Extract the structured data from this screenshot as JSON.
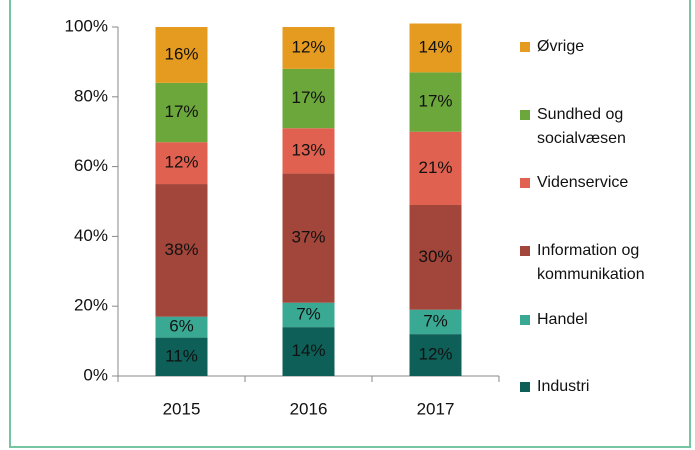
{
  "chart_data": {
    "type": "stacked_bar",
    "categories": [
      "2015",
      "2016",
      "2017"
    ],
    "series": [
      {
        "name": "Industri",
        "color": "#0d5f58",
        "values": [
          11,
          14,
          12
        ],
        "value_labels": [
          "11%",
          "14%",
          "12%"
        ]
      },
      {
        "name": "Handel",
        "color": "#3aa994",
        "values": [
          6,
          7,
          7
        ],
        "value_labels": [
          "6%",
          "7%",
          "7%"
        ]
      },
      {
        "name": "Information og kommunikation",
        "color": "#a2453a",
        "values": [
          38,
          37,
          30
        ],
        "value_labels": [
          "38%",
          "37%",
          "30%"
        ]
      },
      {
        "name": "Videnservice",
        "color": "#e0614f",
        "values": [
          12,
          13,
          21
        ],
        "value_labels": [
          "12%",
          "13%",
          "21%"
        ]
      },
      {
        "name": "Sundhed og socialvæsen",
        "color": "#6ba73b",
        "values": [
          17,
          17,
          17
        ],
        "value_labels": [
          "17%",
          "17%",
          "17%"
        ]
      },
      {
        "name": "Øvrige",
        "color": "#e59b20",
        "values": [
          16,
          12,
          14
        ],
        "value_labels": [
          "16%",
          "12%",
          "14%"
        ]
      }
    ],
    "ylim": [
      0,
      100
    ],
    "yticks": [
      {
        "value": 0,
        "label": "0%"
      },
      {
        "value": 20,
        "label": "20%"
      },
      {
        "value": 40,
        "label": "40%"
      },
      {
        "value": 60,
        "label": "60%"
      },
      {
        "value": 80,
        "label": "80%"
      },
      {
        "value": 100,
        "label": "100%"
      }
    ],
    "grid": false,
    "legend": "right"
  }
}
